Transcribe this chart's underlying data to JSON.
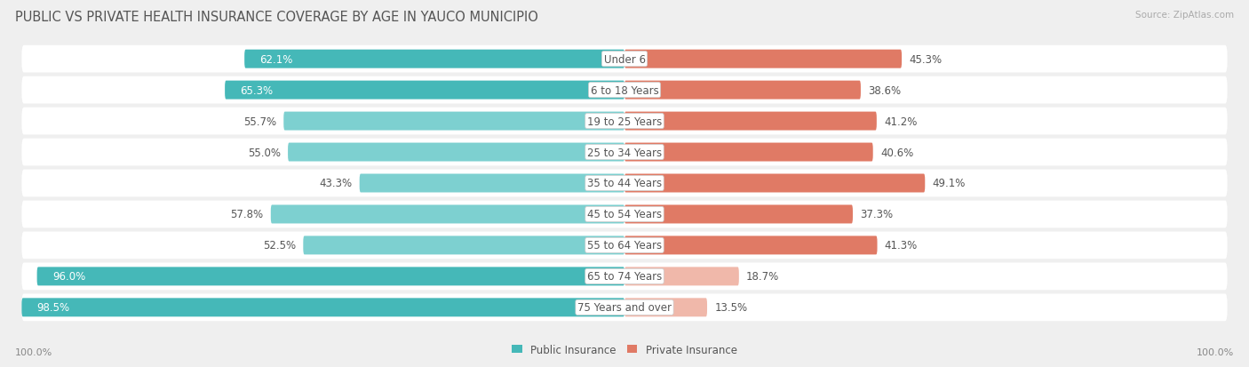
{
  "title": "PUBLIC VS PRIVATE HEALTH INSURANCE COVERAGE BY AGE IN YAUCO MUNICIPIO",
  "source": "Source: ZipAtlas.com",
  "categories": [
    "Under 6",
    "6 to 18 Years",
    "19 to 25 Years",
    "25 to 34 Years",
    "35 to 44 Years",
    "45 to 54 Years",
    "55 to 64 Years",
    "65 to 74 Years",
    "75 Years and over"
  ],
  "public_values": [
    62.1,
    65.3,
    55.7,
    55.0,
    43.3,
    57.8,
    52.5,
    96.0,
    98.5
  ],
  "private_values": [
    45.3,
    38.6,
    41.2,
    40.6,
    49.1,
    37.3,
    41.3,
    18.7,
    13.5
  ],
  "public_label_white": [
    true,
    true,
    false,
    false,
    false,
    false,
    false,
    true,
    true
  ],
  "private_color_strong": [
    true,
    true,
    true,
    true,
    true,
    true,
    true,
    false,
    false
  ],
  "x_left_label": "100.0%",
  "x_right_label": "100.0%",
  "public_color_strong": "#45b8b8",
  "public_color_normal": "#7dd0d0",
  "private_color_strong_hex": "#e07a65",
  "private_color_light_hex": "#f0b8aa",
  "bar_height": 0.6,
  "bg_color": "#efefef",
  "legend_public": "Public Insurance",
  "legend_private": "Private Insurance",
  "title_fontsize": 10.5,
  "value_fontsize": 8.5,
  "category_fontsize": 8.5,
  "source_fontsize": 7.5
}
